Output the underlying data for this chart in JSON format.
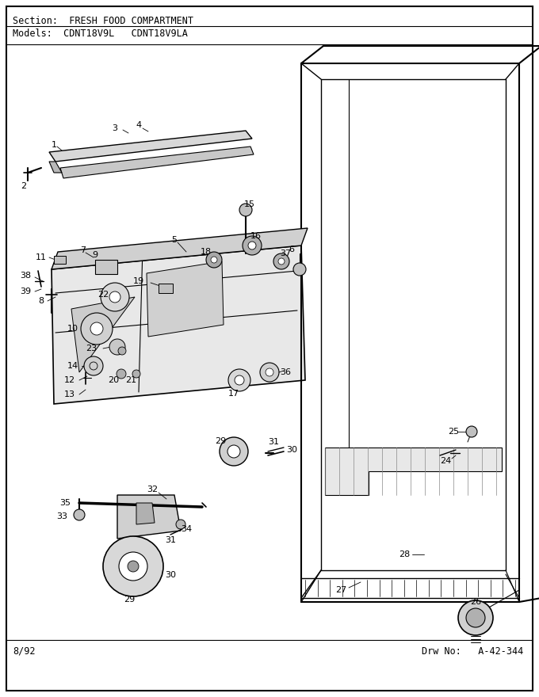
{
  "section_label": "Section:  FRESH FOOD COMPARTMENT",
  "models_label": "Models:  CDNT18V9L   CDNT18V9LA",
  "footer_left": "8/92",
  "footer_right": "Drw No:   A-42-344",
  "bg_color": "#ffffff",
  "border_color": "#000000",
  "text_color": "#000000",
  "fig_width": 6.8,
  "fig_height": 8.8,
  "dpi": 100
}
